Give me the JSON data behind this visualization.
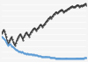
{
  "background_color": "#f5f5f5",
  "grid_color": "#ffffff",
  "line1_color": "#333333",
  "line2_color": "#5b9bd5",
  "line1_linewidth": 0.7,
  "line2_linewidth": 0.7,
  "line1_marker": ".",
  "line2_marker": ".",
  "line1_markersize": 1.0,
  "line2_markersize": 1.0,
  "line1_values": [
    2,
    8,
    14,
    10,
    0,
    -10,
    -22,
    -34,
    -28,
    -20,
    -15,
    -10,
    -18,
    -26,
    -34,
    -38,
    -30,
    -22,
    -14,
    -8,
    -4,
    0,
    -6,
    -12,
    -20,
    -10,
    -4,
    2,
    6,
    0,
    -4,
    -8,
    0,
    6,
    10,
    14,
    18,
    20,
    16,
    12,
    16,
    20,
    24,
    28,
    32,
    28,
    24,
    28,
    32,
    36,
    40,
    44,
    48,
    52,
    54,
    58,
    54,
    58,
    62,
    66,
    68,
    72,
    74,
    70,
    72,
    76,
    78,
    80,
    82,
    78,
    74,
    76,
    78,
    80,
    82,
    84,
    86,
    88,
    90,
    92,
    94,
    92,
    90,
    92,
    94,
    96,
    98,
    96,
    92,
    94,
    96,
    94,
    97,
    98,
    100,
    102,
    98
  ],
  "line2_values": [
    -8,
    -12,
    -14,
    -18,
    -22,
    -28,
    -34,
    -38,
    -36,
    -34,
    -36,
    -40,
    -42,
    -44,
    -46,
    -50,
    -52,
    -54,
    -56,
    -58,
    -58,
    -60,
    -62,
    -60,
    -62,
    -64,
    -65,
    -66,
    -68,
    -66,
    -67,
    -68,
    -69,
    -68,
    -69,
    -70,
    -69,
    -70,
    -71,
    -71,
    -72,
    -73,
    -74,
    -75,
    -75,
    -76,
    -76,
    -77,
    -77,
    -77,
    -76,
    -77,
    -77,
    -78,
    -78,
    -79,
    -79,
    -79,
    -80,
    -80,
    -80,
    -81,
    -81,
    -81,
    -81,
    -81,
    -81,
    -82,
    -82,
    -82,
    -82,
    -82,
    -82,
    -81,
    -81,
    -82,
    -82,
    -82,
    -82,
    -82,
    -82,
    -82,
    -82,
    -82,
    -82,
    -81,
    -81,
    -81,
    -82,
    -81,
    -81,
    -81,
    -81,
    -81,
    -80,
    -80,
    -80
  ],
  "ylim": [
    -90,
    110
  ],
  "xlim": [
    0,
    96
  ],
  "figsize": [
    1.0,
    0.71
  ],
  "dpi": 100
}
